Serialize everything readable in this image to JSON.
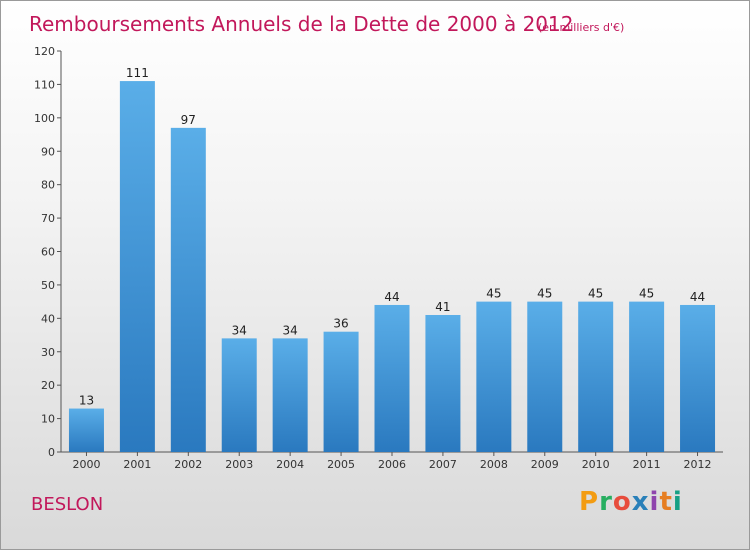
{
  "chart_data": {
    "type": "bar",
    "title": "Remboursements Annuels de la Dette de 2000 à 2012",
    "subtitle": "(en milliers d'€)",
    "categories": [
      "2000",
      "2001",
      "2002",
      "2003",
      "2004",
      "2005",
      "2006",
      "2007",
      "2008",
      "2009",
      "2010",
      "2011",
      "2012"
    ],
    "values": [
      13,
      111,
      97,
      34,
      34,
      36,
      44,
      41,
      45,
      45,
      45,
      45,
      44
    ],
    "ylim": [
      0,
      120
    ],
    "yticks": [
      0,
      10,
      20,
      30,
      40,
      50,
      60,
      70,
      80,
      90,
      100,
      110,
      120
    ],
    "grid": false,
    "bar_color": "#3d8fd4"
  },
  "commune": "BESLON",
  "brand": {
    "letters": [
      "P",
      "r",
      "o",
      "x",
      "i",
      "t",
      "i"
    ],
    "colors": [
      "#f39c12",
      "#27ae60",
      "#e74c3c",
      "#2980b9",
      "#8e44ad",
      "#e67e22",
      "#16a085"
    ]
  }
}
